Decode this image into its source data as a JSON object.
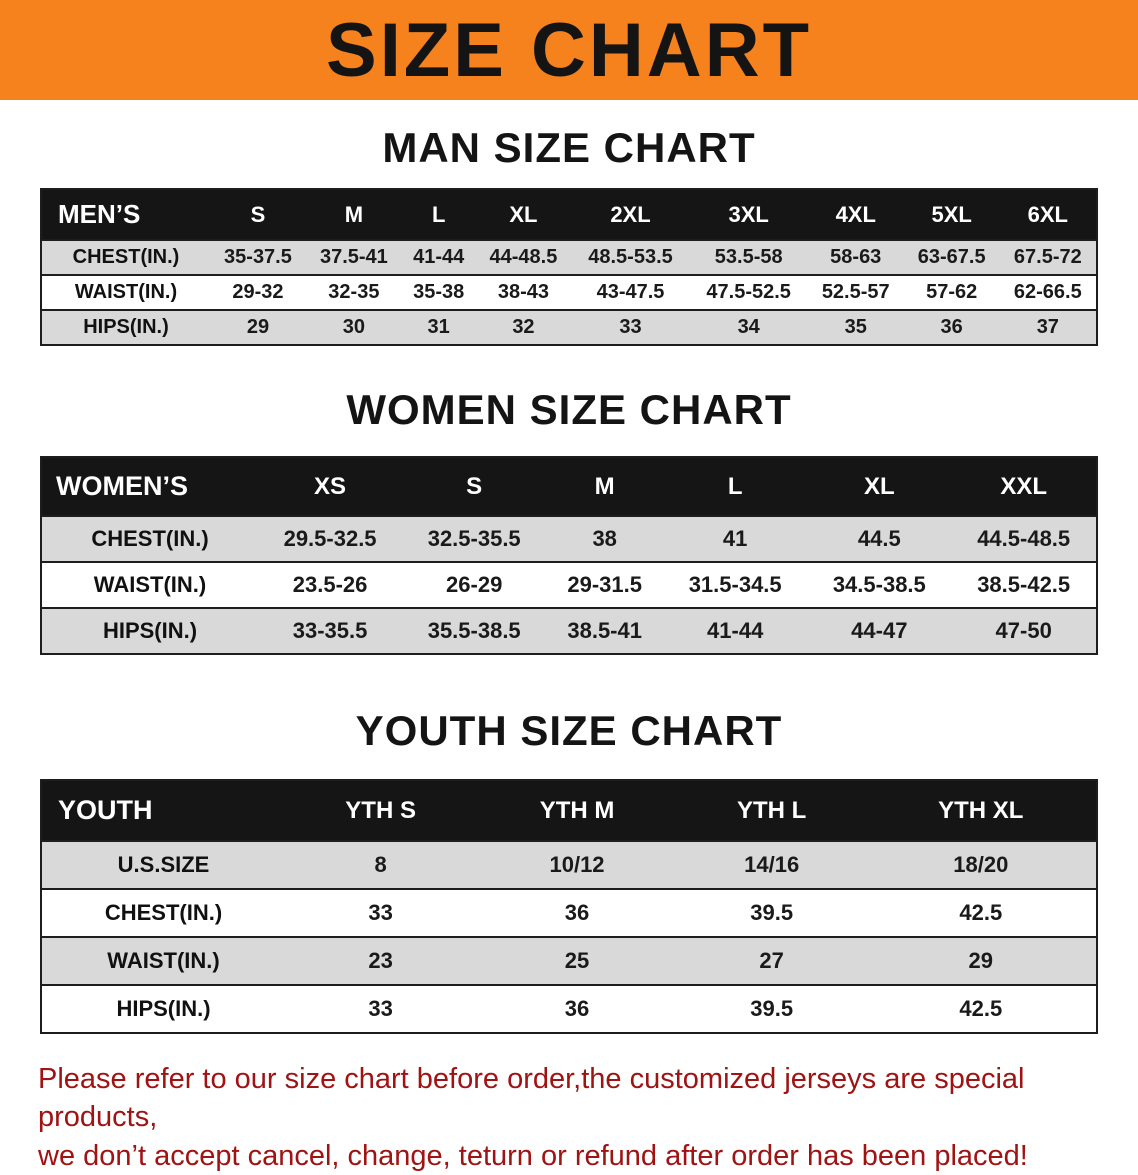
{
  "banner": {
    "title": "SIZE CHART"
  },
  "colors": {
    "banner_bg": "#f5821d",
    "header_bar": "#151515",
    "row_stripe": "#d9d9d9",
    "disclaimer_text": "#a01313"
  },
  "sections": [
    {
      "id": "men",
      "heading": "MAN SIZE CHART",
      "table": {
        "header": [
          "MEN’S",
          "S",
          "M",
          "L",
          "XL",
          "2XL",
          "3XL",
          "4XL",
          "5XL",
          "6XL"
        ],
        "rows": [
          [
            "CHEST(IN.)",
            "35-37.5",
            "37.5-41",
            "41-44",
            "44-48.5",
            "48.5-53.5",
            "53.5-58",
            "58-63",
            "63-67.5",
            "67.5-72"
          ],
          [
            "WAIST(IN.)",
            "29-32",
            "32-35",
            "35-38",
            "38-43",
            "43-47.5",
            "47.5-52.5",
            "52.5-57",
            "57-62",
            "62-66.5"
          ],
          [
            "HIPS(IN.)",
            "29",
            "30",
            "31",
            "32",
            "33",
            "34",
            "35",
            "36",
            "37"
          ]
        ]
      }
    },
    {
      "id": "women",
      "heading": "WOMEN SIZE CHART",
      "table": {
        "header": [
          "WOMEN’S",
          "XS",
          "S",
          "M",
          "L",
          "XL",
          "XXL"
        ],
        "rows": [
          [
            "CHEST(IN.)",
            "29.5-32.5",
            "32.5-35.5",
            "38",
            "41",
            "44.5",
            "44.5-48.5"
          ],
          [
            "WAIST(IN.)",
            "23.5-26",
            "26-29",
            "29-31.5",
            "31.5-34.5",
            "34.5-38.5",
            "38.5-42.5"
          ],
          [
            "HIPS(IN.)",
            "33-35.5",
            "35.5-38.5",
            "38.5-41",
            "41-44",
            "44-47",
            "47-50"
          ]
        ]
      }
    },
    {
      "id": "youth",
      "heading": "YOUTH SIZE CHART",
      "table": {
        "header": [
          "YOUTH",
          "YTH S",
          "YTH M",
          "YTH L",
          "YTH XL"
        ],
        "rows": [
          [
            "U.S.SIZE",
            "8",
            "10/12",
            "14/16",
            "18/20"
          ],
          [
            "CHEST(IN.)",
            "33",
            "36",
            "39.5",
            "42.5"
          ],
          [
            "WAIST(IN.)",
            "23",
            "25",
            "27",
            "29"
          ],
          [
            "HIPS(IN.)",
            "33",
            "36",
            "39.5",
            "42.5"
          ]
        ]
      }
    }
  ],
  "disclaimer": {
    "line1": "Please refer to our size chart before order,the customized jerseys are special products,",
    "line2": "we don’t accept cancel, change, teturn or refund after order has been placed!"
  }
}
